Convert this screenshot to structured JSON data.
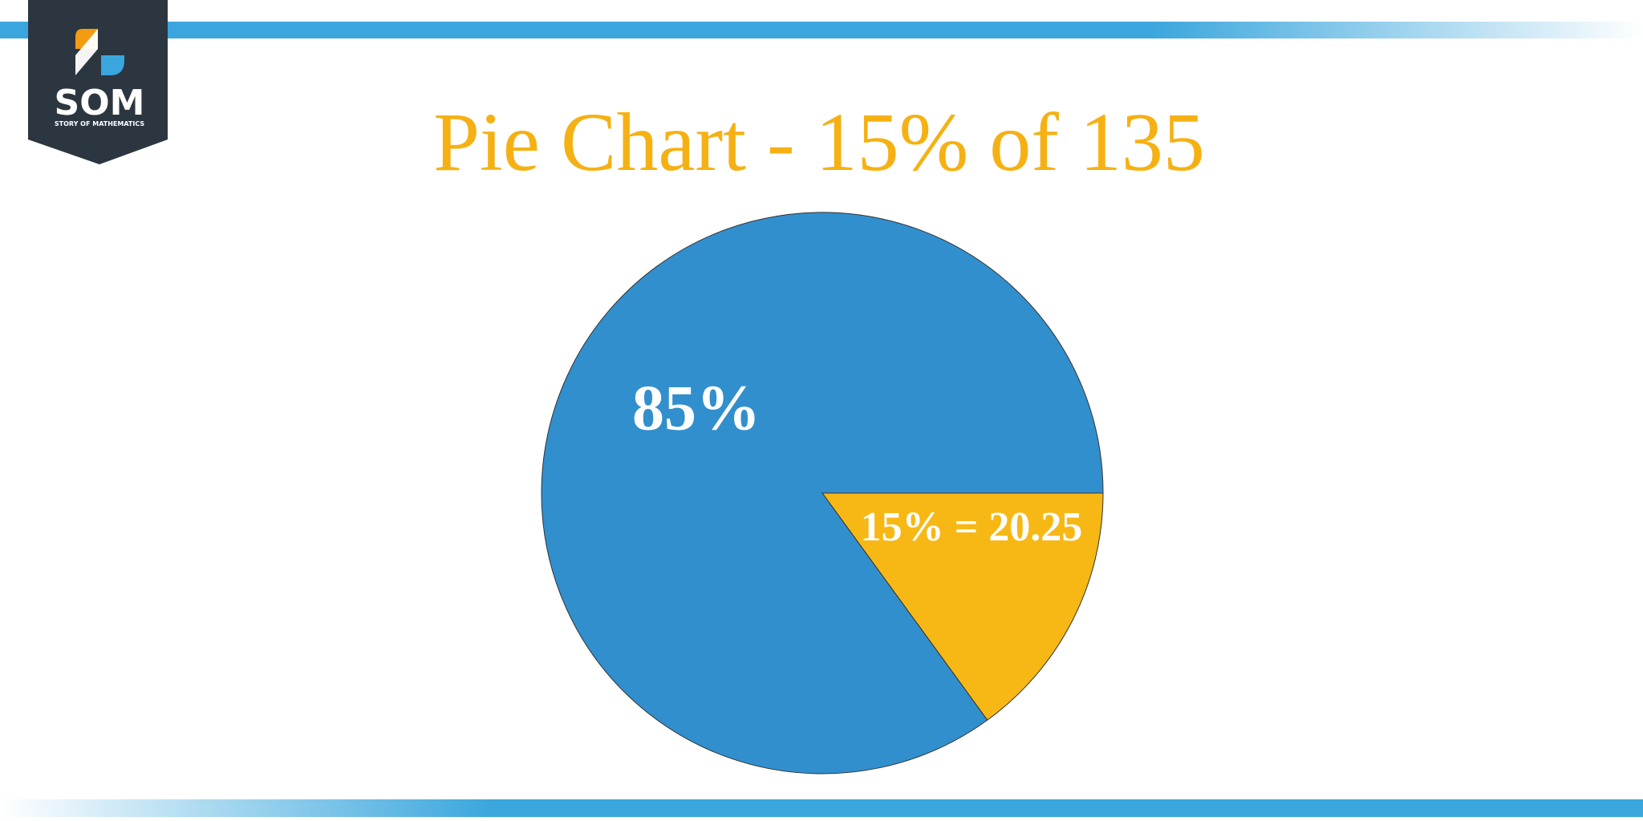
{
  "logo": {
    "title": "SOM",
    "subtitle": "STORY OF MATHEMATICS"
  },
  "chart_data": {
    "type": "pie",
    "title": "Pie Chart - 15% of 135",
    "values": [
      15,
      85
    ],
    "value_labels": [
      "15% = 20.25",
      "85%"
    ],
    "colors": [
      "#f7b815",
      "#318fcd"
    ]
  }
}
